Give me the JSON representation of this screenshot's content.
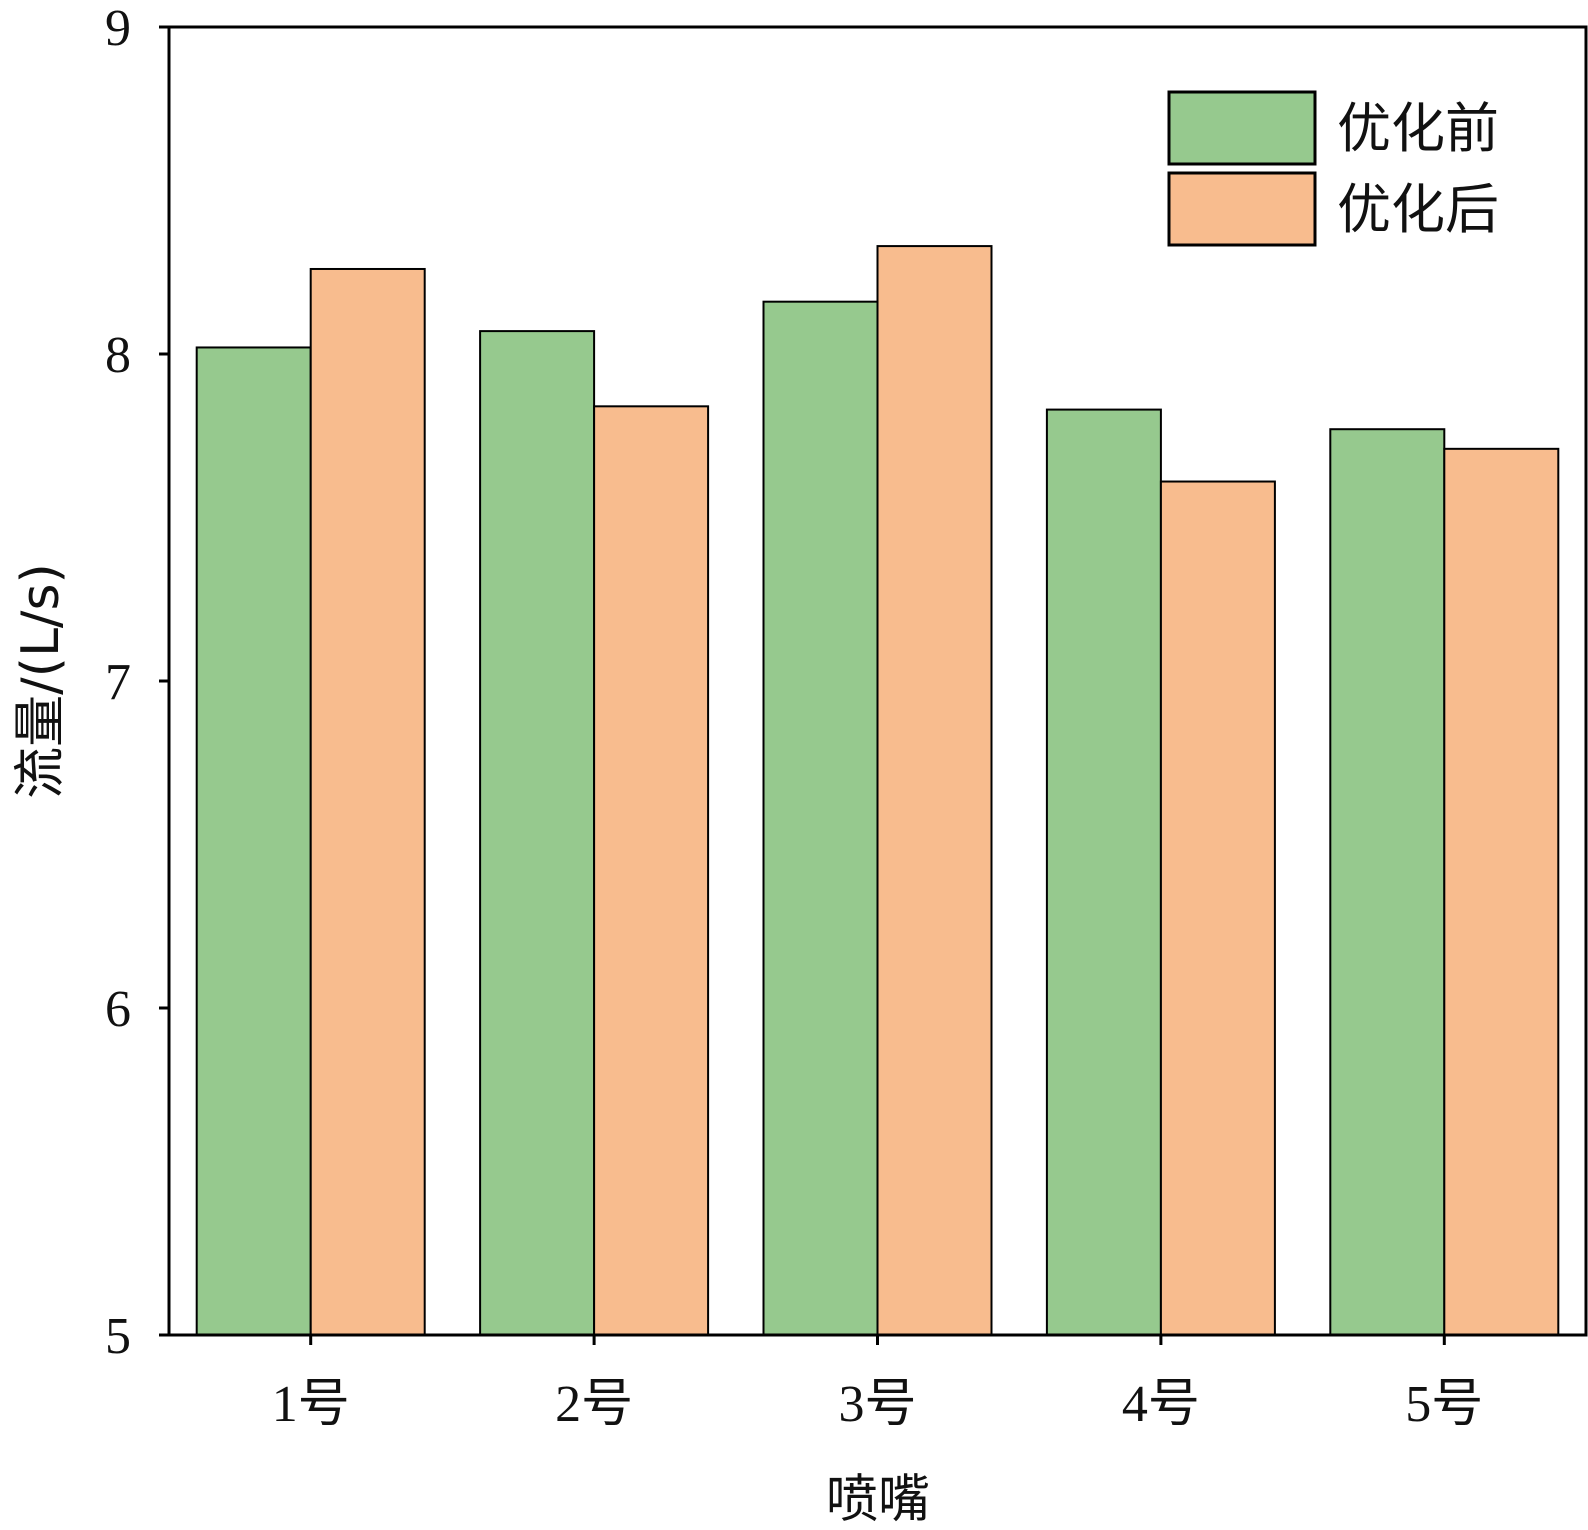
{
  "chart_data": {
    "type": "bar",
    "title": "",
    "xlabel": "喷嘴",
    "ylabel": "流量/(L/s)",
    "categories": [
      "1号",
      "2号",
      "3号",
      "4号",
      "5号"
    ],
    "series": [
      {
        "name": "优化前",
        "color": "#96c98e",
        "values": [
          8.02,
          8.07,
          8.16,
          7.83,
          7.77
        ]
      },
      {
        "name": "优化后",
        "color": "#f8bc8e",
        "values": [
          8.26,
          7.84,
          8.33,
          7.61,
          7.71
        ]
      }
    ],
    "ylim": [
      5,
      9
    ],
    "yticks": [
      "5",
      "6",
      "7",
      "8",
      "9"
    ],
    "grid": false,
    "legend_position": "top-right"
  }
}
